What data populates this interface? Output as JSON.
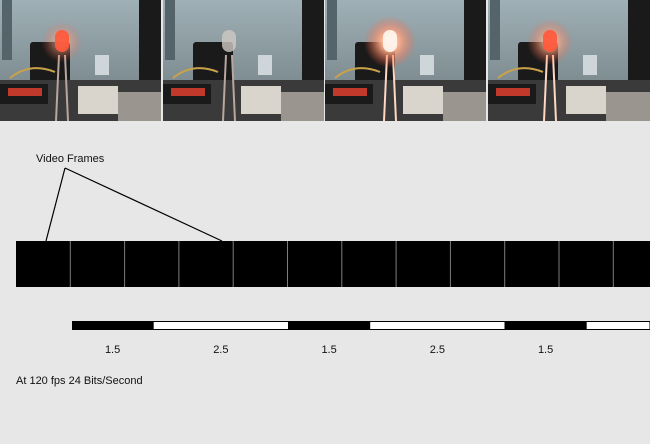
{
  "photo_strip": {
    "panels": [
      {
        "led_state": "dim"
      },
      {
        "led_state": "off"
      },
      {
        "led_state": "bright"
      },
      {
        "led_state": "medium"
      }
    ],
    "led_color": "#ff5a3c",
    "scene_colors": {
      "wall": "#8b9aa0",
      "dark": "#1a1a1a",
      "board": "#c0392b",
      "metal": "#d9d4cc"
    }
  },
  "diagram": {
    "callout_label": "Video Frames",
    "frame_count": 12,
    "frame_color": "#000000",
    "separator_color": "#7d7d7d"
  },
  "bit_timeline": {
    "segments": [
      {
        "state": "on",
        "duration": "1.5"
      },
      {
        "state": "off",
        "duration": "2.5"
      },
      {
        "state": "on",
        "duration": "1.5"
      },
      {
        "state": "off",
        "duration": "2.5"
      },
      {
        "state": "on",
        "duration": "1.5"
      },
      {
        "state": "off",
        "duration": ""
      }
    ]
  },
  "footer": {
    "rate_text": "At 120 fps 24 Bits/Second"
  }
}
